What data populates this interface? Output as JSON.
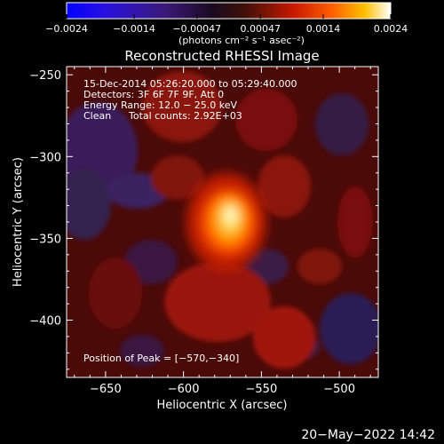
{
  "chart_data": {
    "type": "heatmap",
    "title": "Reconstructed RHESSI Image",
    "xlabel": "Heliocentric X (arcsec)",
    "ylabel": "Heliocentric Y (arcsec)",
    "xlim": [
      -675,
      -475
    ],
    "ylim": [
      -435,
      -245
    ],
    "x_ticks": [
      {
        "v": -650,
        "label": "−650"
      },
      {
        "v": -600,
        "label": "−600"
      },
      {
        "v": -550,
        "label": "−550"
      },
      {
        "v": -500,
        "label": "−500"
      }
    ],
    "y_ticks": [
      {
        "v": -250,
        "label": "−250"
      },
      {
        "v": -300,
        "label": "−300"
      },
      {
        "v": -350,
        "label": "−350"
      },
      {
        "v": -400,
        "label": "−400"
      }
    ],
    "colorbar": {
      "range": [
        -0.0024,
        0.0024
      ],
      "ticks": [
        {
          "v": -0.0024,
          "label": "−0.0024"
        },
        {
          "v": -0.0014,
          "label": "−0.0014"
        },
        {
          "v": -0.00047,
          "label": "−0.00047"
        },
        {
          "v": 0.00047,
          "label": "0.00047"
        },
        {
          "v": 0.0014,
          "label": "0.0014"
        },
        {
          "v": 0.0024,
          "label": "0.0024"
        }
      ],
      "unit_label": "(photons cm⁻² s⁻¹ asec⁻²)"
    },
    "annotations": {
      "line1": "15-Dec-2014 05:26:20.000 to 05:29:40.000",
      "line2": "Detectors: 3F 6F 7F 9F, Att 0",
      "line3": "Energy Range: 12.0 − 25.0 keV",
      "line4_left": "Clean",
      "line4_right": "Total counts: 2.92E+03",
      "peak": "Position of Peak = [−570,−340]"
    },
    "peak": {
      "x": -570,
      "y": -340
    }
  },
  "footer_timestamp": "20−May−2022 14:42"
}
